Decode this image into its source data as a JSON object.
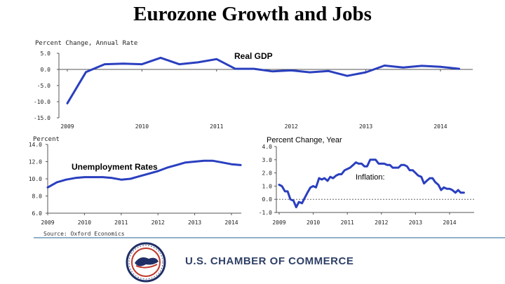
{
  "title": "Eurozone Growth and Jobs",
  "source": "Source: Oxford Economics",
  "organization": "U.S. CHAMBER OF COMMERCE",
  "colors": {
    "line": "#2a3fbf",
    "footer_rule": "#8fb1c9",
    "org_text": "#2e3f66"
  },
  "chart_data": [
    {
      "type": "line",
      "ylabel": "Percent Change, Annual Rate",
      "series_label": "Real GDP",
      "ylim": [
        -15,
        5
      ],
      "yticks": [
        "5.0",
        "0.0",
        "-5.0",
        "-10.0",
        "-15.0"
      ],
      "xticks": [
        "2009",
        "2010",
        "2011",
        "2012",
        "2013",
        "2014"
      ],
      "xlim": [
        2009,
        2014.5
      ],
      "grid": false,
      "series": [
        {
          "x": [
            2009.0,
            2009.25,
            2009.5,
            2009.75,
            2010.0,
            2010.25,
            2010.5,
            2010.75,
            2011.0,
            2011.25,
            2011.5,
            2011.75,
            2012.0,
            2012.25,
            2012.5,
            2012.75,
            2013.0,
            2013.25,
            2013.5,
            2013.75,
            2014.0,
            2014.25
          ],
          "values": [
            -10.5,
            -0.8,
            1.6,
            1.8,
            1.6,
            3.6,
            1.6,
            2.2,
            3.2,
            0.2,
            0.2,
            -0.6,
            -0.3,
            -0.9,
            -0.5,
            -2.0,
            -0.9,
            1.2,
            0.6,
            1.1,
            0.8,
            0.2
          ]
        }
      ]
    },
    {
      "type": "line",
      "ylabel": "Percent",
      "series_label": "Unemployment Rates",
      "ylim": [
        6,
        14
      ],
      "yticks": [
        "14.0",
        "12.0",
        "10.0",
        "8.0",
        "6.0"
      ],
      "xticks": [
        "2009",
        "2010",
        "2011",
        "2012",
        "2013",
        "2014"
      ],
      "xlim": [
        2009,
        2014.2
      ],
      "grid": false,
      "series": [
        {
          "x": [
            2009.0,
            2009.25,
            2009.5,
            2009.75,
            2010.0,
            2010.25,
            2010.5,
            2010.75,
            2011.0,
            2011.25,
            2011.5,
            2011.75,
            2012.0,
            2012.25,
            2012.5,
            2012.75,
            2013.0,
            2013.25,
            2013.5,
            2013.75,
            2014.0,
            2014.25
          ],
          "values": [
            9.0,
            9.6,
            9.9,
            10.1,
            10.2,
            10.2,
            10.2,
            10.1,
            9.9,
            10.0,
            10.3,
            10.6,
            10.9,
            11.3,
            11.6,
            11.9,
            12.0,
            12.1,
            12.1,
            11.9,
            11.7,
            11.6
          ]
        }
      ]
    },
    {
      "type": "line",
      "ylabel": "Percent Change, Year",
      "series_label": "Inflation:",
      "ylim": [
        -1,
        4
      ],
      "yticks": [
        "4.0",
        "3.0",
        "2.0",
        "1.0",
        "0.0",
        "-1.0"
      ],
      "xticks": [
        "2009",
        "2010",
        "2011",
        "2012",
        "2013",
        "2014"
      ],
      "xlim": [
        2009,
        2014.5
      ],
      "zero_line": true,
      "grid": false,
      "series": [
        {
          "x": [
            2009.0,
            2009.08,
            2009.17,
            2009.25,
            2009.33,
            2009.42,
            2009.5,
            2009.58,
            2009.67,
            2009.75,
            2009.83,
            2009.92,
            2010.0,
            2010.08,
            2010.17,
            2010.25,
            2010.33,
            2010.42,
            2010.5,
            2010.58,
            2010.67,
            2010.75,
            2010.83,
            2010.92,
            2011.0,
            2011.08,
            2011.17,
            2011.25,
            2011.33,
            2011.42,
            2011.5,
            2011.58,
            2011.67,
            2011.75,
            2011.83,
            2011.92,
            2012.0,
            2012.08,
            2012.17,
            2012.25,
            2012.33,
            2012.42,
            2012.5,
            2012.58,
            2012.67,
            2012.75,
            2012.83,
            2012.92,
            2013.0,
            2013.08,
            2013.17,
            2013.25,
            2013.33,
            2013.42,
            2013.5,
            2013.58,
            2013.67,
            2013.75,
            2013.83,
            2013.92,
            2014.0,
            2014.08,
            2014.17,
            2014.25,
            2014.33,
            2014.42
          ],
          "values": [
            1.1,
            1.0,
            0.6,
            0.6,
            0.0,
            -0.1,
            -0.6,
            -0.2,
            -0.3,
            0.1,
            0.5,
            0.9,
            1.0,
            0.9,
            1.6,
            1.5,
            1.6,
            1.4,
            1.7,
            1.6,
            1.8,
            1.9,
            1.9,
            2.2,
            2.3,
            2.4,
            2.6,
            2.8,
            2.7,
            2.7,
            2.5,
            2.5,
            3.0,
            3.0,
            3.0,
            2.7,
            2.7,
            2.7,
            2.6,
            2.6,
            2.4,
            2.4,
            2.4,
            2.6,
            2.6,
            2.5,
            2.2,
            2.2,
            2.0,
            1.8,
            1.7,
            1.2,
            1.4,
            1.6,
            1.6,
            1.3,
            1.1,
            0.7,
            0.9,
            0.8,
            0.8,
            0.7,
            0.5,
            0.7,
            0.5,
            0.5
          ]
        }
      ]
    }
  ]
}
